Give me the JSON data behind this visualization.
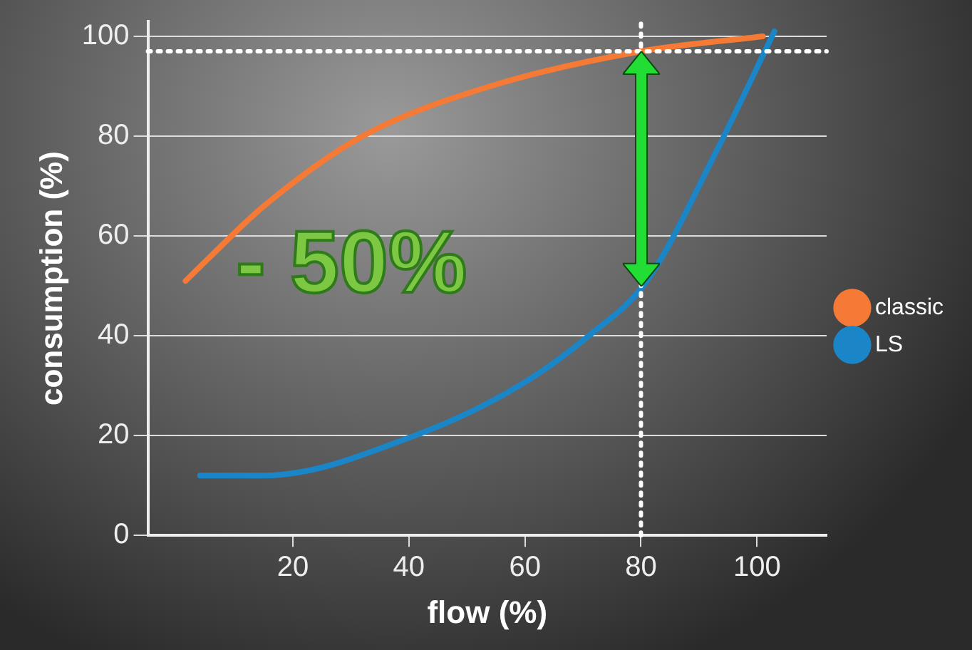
{
  "chart_data": {
    "type": "line",
    "xlabel": "flow (%)",
    "ylabel": "consumption (%)",
    "xlim": [
      -5,
      112
    ],
    "xticks": [
      20,
      40,
      60,
      80,
      100
    ],
    "ylim": [
      0,
      103
    ],
    "yticks": [
      0,
      20,
      40,
      60,
      80,
      100
    ],
    "series": [
      {
        "name": "classic",
        "color": "#f47a36",
        "x": [
          1.5,
          5,
          15,
          32,
          54,
          80,
          101
        ],
        "values": [
          51,
          55,
          66,
          80,
          90,
          97,
          100
        ]
      },
      {
        "name": "LS",
        "color": "#1a86c8",
        "x": [
          4,
          15,
          41,
          59,
          71,
          81,
          93,
          103
        ],
        "values": [
          12,
          12,
          20,
          30,
          40,
          51,
          77,
          101
        ]
      }
    ],
    "ref_lines": [
      {
        "axis": "y",
        "value": 97,
        "color": "#ffffff",
        "line_style": "dotted"
      },
      {
        "axis": "x",
        "value": 80,
        "color": "#ffffff",
        "line_style": "dotted"
      }
    ],
    "annotations": [
      "- 50%"
    ],
    "grid": "y",
    "legend": "right",
    "marker": "none",
    "line_style": "solid"
  }
}
